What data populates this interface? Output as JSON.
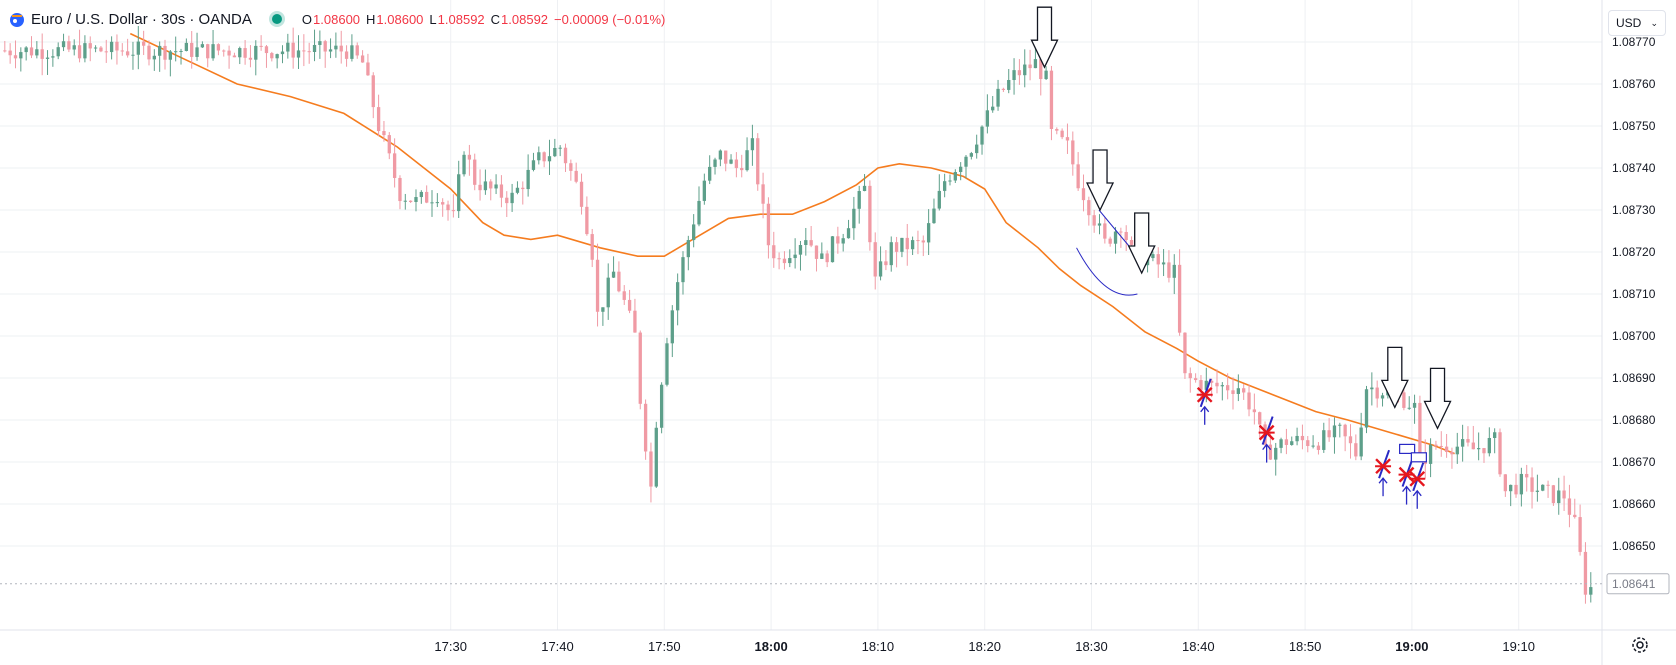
{
  "header": {
    "title": "Euro / U.S. Dollar · 30s · OANDA",
    "open_label": "O",
    "open": "1.08600",
    "high_label": "H",
    "high": "1.08600",
    "low_label": "L",
    "low": "1.08592",
    "close_label": "C",
    "close": "1.08592",
    "change": "−0.00009 (−0.01%)"
  },
  "currency_button": {
    "label": "USD"
  },
  "colors": {
    "up": "#5d9f8a",
    "down": "#f09aa4",
    "ma": "#f57c1f",
    "grid": "#eef0f3",
    "axis_text": "#131722",
    "annotation_blue": "#2929c4",
    "annotation_red": "#e5161e"
  },
  "chart_data": {
    "type": "candlestick",
    "symbol": "Euro / U.S. Dollar · 30s · OANDA",
    "x_unit": "minutes from 17:00",
    "ylim": [
      1.0863,
      1.0878
    ],
    "y_ticks": [
      "1.08650",
      "1.08660",
      "1.08670",
      "1.08680",
      "1.08690",
      "1.08700",
      "1.08710",
      "1.08720",
      "1.08730",
      "1.08740",
      "1.08750",
      "1.08760",
      "1.08770"
    ],
    "y_tick_values": [
      1.0865,
      1.0866,
      1.0867,
      1.0868,
      1.0869,
      1.087,
      1.0871,
      1.0872,
      1.0873,
      1.0874,
      1.0875,
      1.0876,
      1.0877
    ],
    "x_ticks": [
      {
        "label": "17:30",
        "t": 30,
        "bold": false
      },
      {
        "label": "17:40",
        "t": 40,
        "bold": false
      },
      {
        "label": "17:50",
        "t": 50,
        "bold": false
      },
      {
        "label": "18:00",
        "t": 60,
        "bold": true
      },
      {
        "label": "18:10",
        "t": 70,
        "bold": false
      },
      {
        "label": "18:20",
        "t": 80,
        "bold": false
      },
      {
        "label": "18:30",
        "t": 90,
        "bold": false
      },
      {
        "label": "18:40",
        "t": 100,
        "bold": false
      },
      {
        "label": "18:50",
        "t": 110,
        "bold": false
      },
      {
        "label": "19:00",
        "t": 120,
        "bold": true
      },
      {
        "label": "19:10",
        "t": 130,
        "bold": false
      }
    ],
    "last_price_label": "1.08641",
    "last_price": 1.08641,
    "grid": true,
    "candle_keypoints": [
      [
        20.5,
        1.08768
      ],
      [
        22.0,
        1.08765
      ],
      [
        23.5,
        1.0875
      ],
      [
        25.5,
        1.08734
      ],
      [
        27.0,
        1.08732
      ],
      [
        29.0,
        1.08734
      ],
      [
        30.5,
        1.08728
      ],
      [
        31.5,
        1.08745
      ],
      [
        32.5,
        1.08737
      ],
      [
        34.5,
        1.08734
      ],
      [
        36.0,
        1.08733
      ],
      [
        38.5,
        1.08742
      ],
      [
        40.5,
        1.08745
      ],
      [
        42.5,
        1.08733
      ],
      [
        43.5,
        1.0872
      ],
      [
        44.0,
        1.08705
      ],
      [
        45.5,
        1.08715
      ],
      [
        46.5,
        1.08708
      ],
      [
        47.5,
        1.087
      ],
      [
        48.0,
        1.08685
      ],
      [
        49.0,
        1.08664
      ],
      [
        49.5,
        1.0868
      ],
      [
        50.5,
        1.087
      ],
      [
        51.5,
        1.08713
      ],
      [
        52.5,
        1.08723
      ],
      [
        54.0,
        1.08737
      ],
      [
        55.5,
        1.08743
      ],
      [
        57.0,
        1.0874
      ],
      [
        58.5,
        1.08745
      ],
      [
        60.0,
        1.08722
      ],
      [
        61.0,
        1.08718
      ],
      [
        63.5,
        1.08724
      ],
      [
        65.0,
        1.08718
      ],
      [
        67.0,
        1.08725
      ],
      [
        69.0,
        1.08735
      ],
      [
        70.0,
        1.08713
      ],
      [
        71.5,
        1.08721
      ],
      [
        74.5,
        1.08722
      ],
      [
        76.5,
        1.08737
      ],
      [
        79.0,
        1.08745
      ],
      [
        81.5,
        1.08757
      ],
      [
        83.0,
        1.08762
      ],
      [
        85.0,
        1.08765
      ],
      [
        86.0,
        1.08761
      ],
      [
        86.5,
        1.08748
      ],
      [
        88.0,
        1.08745
      ],
      [
        89.0,
        1.08737
      ],
      [
        90.5,
        1.08728
      ],
      [
        91.5,
        1.08722
      ],
      [
        93.0,
        1.08727
      ],
      [
        94.0,
        1.0872
      ],
      [
        96.5,
        1.08717
      ],
      [
        98.0,
        1.08715
      ],
      [
        98.5,
        1.087
      ],
      [
        99.0,
        1.0869
      ],
      [
        101.5,
        1.08688
      ],
      [
        104.0,
        1.08688
      ],
      [
        105.5,
        1.08682
      ],
      [
        106.5,
        1.08672
      ],
      [
        108.5,
        1.08675
      ],
      [
        111.5,
        1.08675
      ],
      [
        113.5,
        1.08677
      ],
      [
        115.0,
        1.08672
      ],
      [
        116.0,
        1.08688
      ],
      [
        119.0,
        1.08686
      ],
      [
        120.5,
        1.08683
      ],
      [
        121.0,
        1.0867
      ],
      [
        122.5,
        1.08674
      ],
      [
        124.0,
        1.08674
      ],
      [
        126.0,
        1.08673
      ],
      [
        128.0,
        1.08675
      ],
      [
        129.0,
        1.08663
      ],
      [
        130.5,
        1.08665
      ],
      [
        133.5,
        1.08662
      ],
      [
        134.5,
        1.08662
      ],
      [
        135.5,
        1.08655
      ],
      [
        136.5,
        1.0864
      ]
    ],
    "moving_average": [
      [
        0.0,
        1.08772
      ],
      [
        5.0,
        1.08766
      ],
      [
        10.0,
        1.0876
      ],
      [
        15.0,
        1.08757
      ],
      [
        20.0,
        1.08753
      ],
      [
        25.0,
        1.08745
      ],
      [
        30.0,
        1.08735
      ],
      [
        33.0,
        1.08727
      ],
      [
        35.0,
        1.08724
      ],
      [
        37.5,
        1.08723
      ],
      [
        40.0,
        1.08724
      ],
      [
        44.0,
        1.08721
      ],
      [
        47.5,
        1.08719
      ],
      [
        50.0,
        1.08719
      ],
      [
        52.0,
        1.08722
      ],
      [
        56.0,
        1.08728
      ],
      [
        59.0,
        1.08729
      ],
      [
        62.0,
        1.08729
      ],
      [
        65.0,
        1.08732
      ],
      [
        68.0,
        1.08736
      ],
      [
        70.0,
        1.0874
      ],
      [
        72.0,
        1.08741
      ],
      [
        75.0,
        1.0874
      ],
      [
        76.5,
        1.08739
      ],
      [
        78.0,
        1.08738
      ],
      [
        80.0,
        1.08735
      ],
      [
        82.0,
        1.08727
      ],
      [
        85.0,
        1.08721
      ],
      [
        87.0,
        1.08716
      ],
      [
        89.0,
        1.08712
      ],
      [
        92.0,
        1.08707
      ],
      [
        95.0,
        1.08701
      ],
      [
        98.0,
        1.08697
      ],
      [
        100.0,
        1.08694
      ],
      [
        103.0,
        1.0869
      ],
      [
        106.0,
        1.08687
      ],
      [
        108.0,
        1.08685
      ],
      [
        111.0,
        1.08682
      ],
      [
        114.0,
        1.0868
      ],
      [
        118.0,
        1.08677
      ],
      [
        122.0,
        1.08674
      ],
      [
        124.0,
        1.08672
      ]
    ]
  },
  "annotations": {
    "down_arrows": [
      {
        "t": 85.6,
        "price": 1.08764
      },
      {
        "t": 90.8,
        "price": 1.0873
      },
      {
        "t": 94.7,
        "price": 1.08715
      },
      {
        "t": 118.4,
        "price": 1.08683
      },
      {
        "t": 122.4,
        "price": 1.08678
      }
    ],
    "red_crosses": [
      {
        "t": 100.6,
        "price": 1.08686
      },
      {
        "t": 106.4,
        "price": 1.08677
      },
      {
        "t": 117.3,
        "price": 1.08669
      },
      {
        "t": 119.5,
        "price": 1.08667
      },
      {
        "t": 120.5,
        "price": 1.08666
      }
    ]
  }
}
